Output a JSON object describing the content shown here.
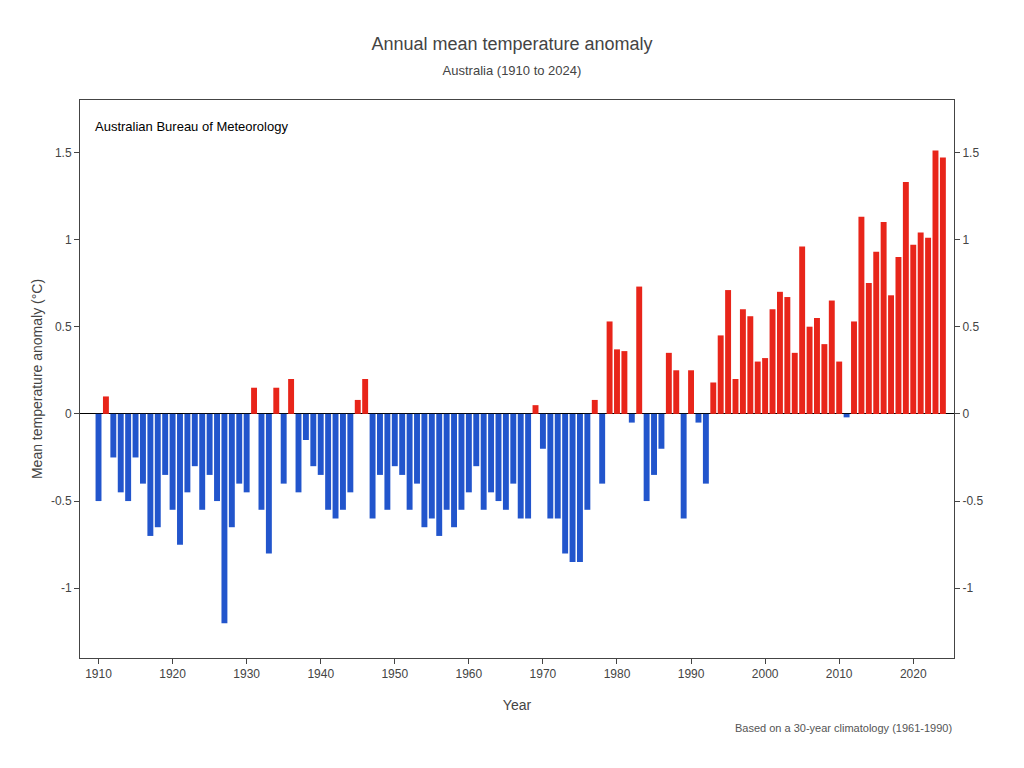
{
  "chart_data": {
    "type": "bar",
    "title": "Annual mean temperature anomaly",
    "subtitle": "Australia (1910 to 2024)",
    "xlabel": "Year",
    "ylabel": "Mean temperature anomaly (°C)",
    "annotations": [
      "Australian Bureau of Meteorology",
      "Based on a 30-year climatology (1961-1990)"
    ],
    "x": [
      1910,
      1911,
      1912,
      1913,
      1914,
      1915,
      1916,
      1917,
      1918,
      1919,
      1920,
      1921,
      1922,
      1923,
      1924,
      1925,
      1926,
      1927,
      1928,
      1929,
      1930,
      1931,
      1932,
      1933,
      1934,
      1935,
      1936,
      1937,
      1938,
      1939,
      1940,
      1941,
      1942,
      1943,
      1944,
      1945,
      1946,
      1947,
      1948,
      1949,
      1950,
      1951,
      1952,
      1953,
      1954,
      1955,
      1956,
      1957,
      1958,
      1959,
      1960,
      1961,
      1962,
      1963,
      1964,
      1965,
      1966,
      1967,
      1968,
      1969,
      1970,
      1971,
      1972,
      1973,
      1974,
      1975,
      1976,
      1977,
      1978,
      1979,
      1980,
      1981,
      1982,
      1983,
      1984,
      1985,
      1986,
      1987,
      1988,
      1989,
      1990,
      1991,
      1992,
      1993,
      1994,
      1995,
      1996,
      1997,
      1998,
      1999,
      2000,
      2001,
      2002,
      2003,
      2004,
      2005,
      2006,
      2007,
      2008,
      2009,
      2010,
      2011,
      2012,
      2013,
      2014,
      2015,
      2016,
      2017,
      2018,
      2019,
      2020,
      2021,
      2022,
      2023,
      2024
    ],
    "values": [
      -0.5,
      0.1,
      -0.25,
      -0.45,
      -0.5,
      -0.25,
      -0.4,
      -0.7,
      -0.65,
      -0.35,
      -0.55,
      -0.75,
      -0.45,
      -0.3,
      -0.55,
      -0.35,
      -0.5,
      -1.2,
      -0.65,
      -0.4,
      -0.45,
      0.15,
      -0.55,
      -0.8,
      0.15,
      -0.4,
      0.2,
      -0.45,
      -0.15,
      -0.3,
      -0.35,
      -0.55,
      -0.6,
      -0.55,
      -0.45,
      0.08,
      0.2,
      -0.6,
      -0.35,
      -0.55,
      -0.3,
      -0.35,
      -0.55,
      -0.4,
      -0.65,
      -0.6,
      -0.7,
      -0.55,
      -0.65,
      -0.55,
      -0.45,
      -0.3,
      -0.55,
      -0.45,
      -0.5,
      -0.55,
      -0.4,
      -0.6,
      -0.6,
      0.05,
      -0.2,
      -0.6,
      -0.6,
      -0.8,
      -0.85,
      -0.85,
      -0.55,
      0.08,
      -0.4,
      0.53,
      0.37,
      0.36,
      -0.05,
      0.73,
      -0.5,
      -0.35,
      -0.2,
      0.35,
      0.25,
      -0.6,
      0.25,
      -0.05,
      -0.4,
      0.18,
      0.45,
      0.71,
      0.2,
      0.6,
      0.56,
      0.3,
      0.32,
      0.6,
      0.7,
      0.67,
      0.35,
      0.96,
      0.5,
      0.55,
      0.4,
      0.65,
      0.3,
      -0.02,
      0.53,
      1.13,
      0.75,
      0.93,
      1.1,
      0.68,
      0.9,
      1.33,
      0.97,
      1.04,
      1.01,
      1.51,
      1.47
    ],
    "colors": [
      "#2255cc",
      "#e8251a",
      "#2255cc",
      "#2255cc",
      "#2255cc",
      "#2255cc",
      "#2255cc",
      "#2255cc",
      "#2255cc",
      "#2255cc",
      "#2255cc",
      "#2255cc",
      "#2255cc",
      "#2255cc",
      "#2255cc",
      "#2255cc",
      "#2255cc",
      "#2255cc",
      "#2255cc",
      "#2255cc",
      "#2255cc",
      "#e8251a",
      "#2255cc",
      "#2255cc",
      "#e8251a",
      "#2255cc",
      "#e8251a",
      "#2255cc",
      "#2255cc",
      "#2255cc",
      "#2255cc",
      "#2255cc",
      "#2255cc",
      "#2255cc",
      "#2255cc",
      "#e8251a",
      "#e8251a",
      "#2255cc",
      "#2255cc",
      "#2255cc",
      "#2255cc",
      "#2255cc",
      "#2255cc",
      "#2255cc",
      "#2255cc",
      "#2255cc",
      "#2255cc",
      "#2255cc",
      "#2255cc",
      "#2255cc",
      "#2255cc",
      "#2255cc",
      "#2255cc",
      "#2255cc",
      "#2255cc",
      "#2255cc",
      "#2255cc",
      "#2255cc",
      "#2255cc",
      "#e8251a",
      "#2255cc",
      "#2255cc",
      "#2255cc",
      "#2255cc",
      "#2255cc",
      "#2255cc",
      "#2255cc",
      "#e8251a",
      "#2255cc",
      "#e8251a",
      "#e8251a",
      "#e8251a",
      "#2255cc",
      "#e8251a",
      "#2255cc",
      "#2255cc",
      "#2255cc",
      "#e8251a",
      "#e8251a",
      "#2255cc",
      "#e8251a",
      "#2255cc",
      "#2255cc",
      "#e8251a",
      "#e8251a",
      "#e8251a",
      "#e8251a",
      "#e8251a",
      "#e8251a",
      "#e8251a",
      "#e8251a",
      "#e8251a",
      "#e8251a",
      "#e8251a",
      "#e8251a",
      "#e8251a",
      "#e8251a",
      "#e8251a",
      "#e8251a",
      "#e8251a",
      "#e8251a",
      "#2255cc",
      "#e8251a",
      "#e8251a",
      "#e8251a",
      "#e8251a",
      "#e8251a",
      "#e8251a",
      "#e8251a",
      "#e8251a",
      "#e8251a",
      "#e8251a",
      "#e8251a",
      "#e8251a",
      "#e8251a"
    ],
    "xlim": [
      1907.5,
      2025.5
    ],
    "xticks": [
      1910,
      1920,
      1930,
      1940,
      1950,
      1960,
      1970,
      1980,
      1990,
      2000,
      2010,
      2020
    ],
    "ylim": [
      -1.4,
      1.8
    ],
    "yticks": [
      -1,
      -0.5,
      0,
      0.5,
      1,
      1.5
    ],
    "y2lim": [
      -1.4,
      1.8
    ],
    "y2ticks": [
      -1,
      -0.5,
      0,
      0.5,
      1,
      1.5
    ],
    "grid": false
  }
}
